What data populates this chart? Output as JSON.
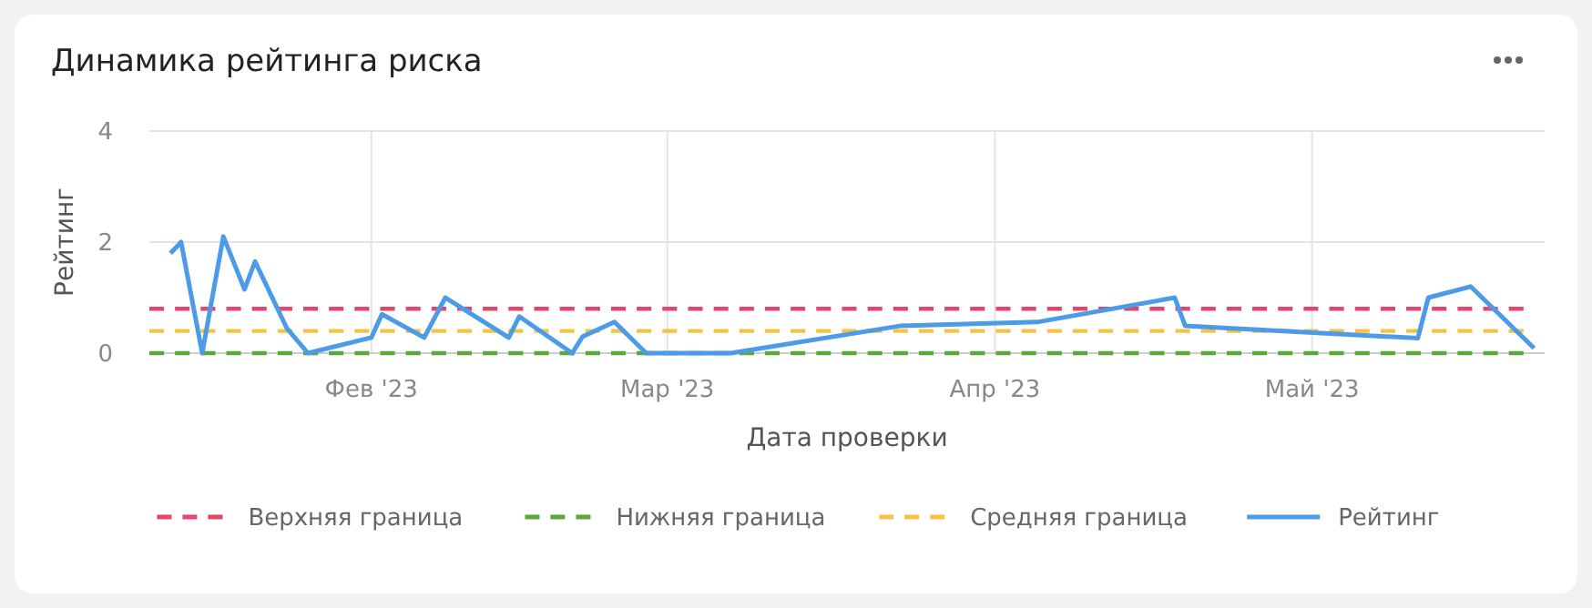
{
  "chart_data": {
    "type": "line",
    "title": "Динамика рейтинга риска",
    "xlabel": "Дата проверки",
    "ylabel": "Рейтинг",
    "xlim": [
      "2023-01-11",
      "2023-05-23"
    ],
    "xticks": [
      {
        "value": "2023-02-01",
        "label": "Фев '23"
      },
      {
        "value": "2023-03-01",
        "label": "Мар '23"
      },
      {
        "value": "2023-04-01",
        "label": "Апр '23"
      },
      {
        "value": "2023-05-01",
        "label": "Май '23"
      }
    ],
    "ylim": [
      0,
      4
    ],
    "yticks": [
      0,
      2,
      4
    ],
    "grid": true,
    "legend": "bottom",
    "series": [
      {
        "name": "Верхняя граница",
        "color": "#e8436a",
        "line_style": "dashed",
        "x": [
          "2023-01-11",
          "2023-05-21"
        ],
        "values": [
          0.8,
          0.8
        ]
      },
      {
        "name": "Нижняя граница",
        "color": "#5aa83a",
        "line_style": "dashed",
        "x": [
          "2023-01-11",
          "2023-05-21"
        ],
        "values": [
          0,
          0
        ]
      },
      {
        "name": "Средняя граница",
        "color": "#f6c244",
        "line_style": "dashed",
        "x": [
          "2023-01-11",
          "2023-05-21"
        ],
        "values": [
          0.4,
          0.4
        ]
      },
      {
        "name": "Рейтинг",
        "color": "#4c9be8",
        "line_style": "solid",
        "x": [
          "2023-01-13",
          "2023-01-14",
          "2023-01-16",
          "2023-01-18",
          "2023-01-20",
          "2023-01-21",
          "2023-01-24",
          "2023-01-26",
          "2023-02-01",
          "2023-02-02",
          "2023-02-06",
          "2023-02-08",
          "2023-02-14",
          "2023-02-15",
          "2023-02-20",
          "2023-02-21",
          "2023-02-24",
          "2023-02-27",
          "2023-03-07",
          "2023-03-23",
          "2023-04-05",
          "2023-04-18",
          "2023-04-19",
          "2023-05-11",
          "2023-05-12",
          "2023-05-16",
          "2023-05-22"
        ],
        "values": [
          1.8,
          2.0,
          0,
          2.1,
          1.15,
          1.65,
          0.45,
          0,
          0.28,
          0.7,
          0.28,
          1.0,
          0.28,
          0.66,
          0,
          0.3,
          0.56,
          0,
          0,
          0.49,
          0.56,
          1.0,
          0.49,
          0.27,
          1.0,
          1.2,
          0.09
        ]
      }
    ]
  }
}
